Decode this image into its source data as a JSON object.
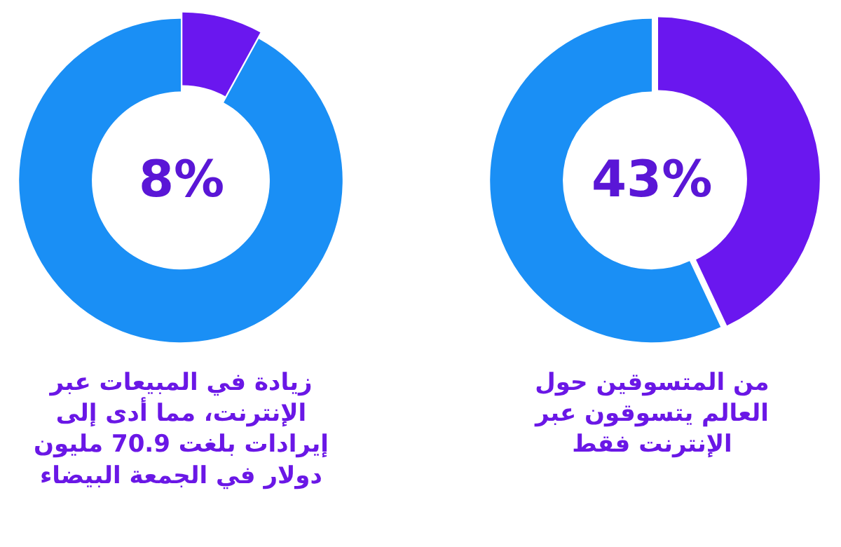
{
  "chart_data": [
    {
      "type": "donut",
      "categories": [
        null,
        null
      ],
      "values": [
        8,
        92
      ],
      "colors": [
        "#6a17ef",
        "#1a8ff5"
      ],
      "annotations": [
        "8%",
        "زيادة في المبيعات عبر\nالإنترنت، مما أدى إلى\nإيرادات بلغت 70.9 مليون\nدولار في الجمعة البيضاء"
      ]
    },
    {
      "type": "donut",
      "categories": [
        null,
        null
      ],
      "values": [
        43,
        57
      ],
      "colors": [
        "#6a17ef",
        "#1a8ff5"
      ],
      "annotations": [
        "43%",
        "من المتسوقين حول\nالعالم يتسوقون عبر\nالإنترنت فقط"
      ]
    }
  ]
}
